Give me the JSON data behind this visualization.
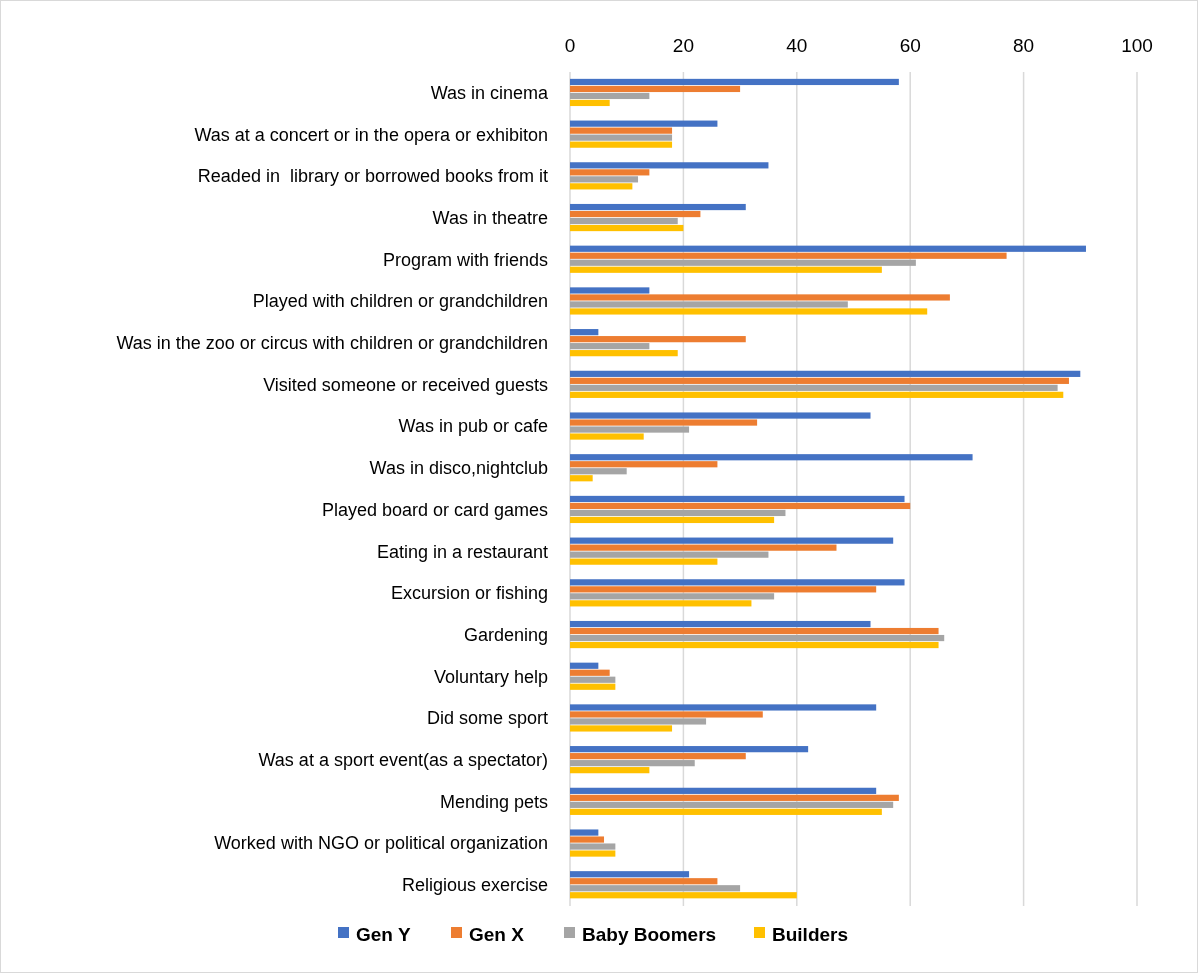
{
  "chart_data": {
    "type": "bar",
    "orientation": "horizontal",
    "categories": [
      "Was in cinema",
      "Was at a concert or in the opera or exhibiton",
      "Readed in  library or borrowed books from it",
      "Was in theatre",
      "Program with friends",
      "Played with children or grandchildren",
      "Was in the zoo or circus with children or grandchildren",
      "Visited someone or received guests",
      "Was in pub or cafe",
      "Was in disco,nightclub",
      "Played board or card games",
      "Eating in a restaurant",
      "Excursion or fishing",
      "Gardening",
      "Voluntary help",
      "Did some sport",
      "Was at a sport event(as a spectator)",
      "Mending pets",
      "Worked with NGO or political organization",
      "Religious exercise"
    ],
    "series": [
      {
        "name": "Gen Y",
        "color": "#4472c4",
        "values": [
          58,
          26,
          35,
          31,
          91,
          14,
          5,
          90,
          53,
          71,
          59,
          57,
          59,
          53,
          5,
          54,
          42,
          54,
          5,
          21
        ]
      },
      {
        "name": "Gen X",
        "color": "#ed7d31",
        "values": [
          30,
          18,
          14,
          23,
          77,
          67,
          31,
          88,
          33,
          26,
          60,
          47,
          54,
          65,
          7,
          34,
          31,
          58,
          6,
          26
        ]
      },
      {
        "name": "Baby Boomers",
        "color": "#a5a5a5",
        "values": [
          14,
          18,
          12,
          19,
          61,
          49,
          14,
          86,
          21,
          10,
          38,
          35,
          36,
          66,
          8,
          24,
          22,
          57,
          8,
          30
        ]
      },
      {
        "name": "Builders",
        "color": "#ffc000",
        "values": [
          7,
          18,
          11,
          20,
          55,
          63,
          19,
          87,
          13,
          4,
          36,
          26,
          32,
          65,
          8,
          18,
          14,
          55,
          8,
          40
        ]
      }
    ],
    "xlim": [
      0,
      100
    ],
    "xticks": [
      0,
      20,
      40,
      60,
      80,
      100
    ],
    "grid": "x",
    "legend": "bottom"
  }
}
